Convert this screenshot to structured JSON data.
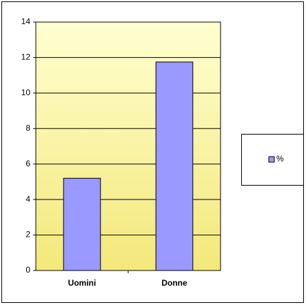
{
  "chart_data": {
    "type": "bar",
    "categories": [
      "Uomini",
      "Donne"
    ],
    "series": [
      {
        "name": "%",
        "color": "#9999ff",
        "values": [
          5.2,
          11.75
        ]
      }
    ],
    "ylim": [
      0,
      14
    ],
    "yticks": [
      0,
      2,
      4,
      6,
      8,
      10,
      12,
      14
    ],
    "grid": true,
    "legend": "right"
  }
}
